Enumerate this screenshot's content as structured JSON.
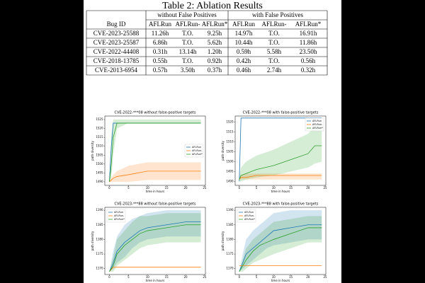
{
  "table": {
    "title": "Table 2: Ablation Results",
    "group_headers": [
      "without False Positives",
      "with False Positives"
    ],
    "columns": [
      "Bug ID",
      "AFLRun",
      "AFLRun-",
      "AFLRun*",
      "AFLRun",
      "AFLRun-",
      "AFLRun*"
    ],
    "rows": [
      [
        "CVE-2023-25588",
        "11.26h",
        "T.O.",
        "9.25h",
        "14.97h",
        "T.O.",
        "16.91h"
      ],
      [
        "CVE-2023-25587",
        "6.86h",
        "T.O.",
        "5.62h",
        "10.44h",
        "T.O.",
        "11.86h"
      ],
      [
        "CVE-2022-44408",
        "0.31h",
        "13.14h",
        "1.20h",
        "0.59h",
        "5.58h",
        "23.50h"
      ],
      [
        "CVE-2018-13785",
        "0.55h",
        "T.O.",
        "0.92h",
        "0.42h",
        "T.O.",
        "0.56h"
      ],
      [
        "CVE-2013-6954",
        "0.57h",
        "3.50h",
        "0.37h",
        "0.46h",
        "2.74h",
        "0.32h"
      ]
    ]
  },
  "chart_data": [
    {
      "type": "line",
      "title": "CVE-2022-***08 without false-positive targets",
      "x_label": "time in hours",
      "y_label": "path diversity",
      "xlim": [
        -1.2,
        25.2
      ],
      "xticks": [
        0,
        5,
        10,
        15,
        20,
        25
      ],
      "ylim": [
        1488,
        1527
      ],
      "yticks": [
        1490,
        1495,
        1500,
        1505,
        1510,
        1515,
        1520,
        1525
      ],
      "legend": "center right",
      "x": [
        0,
        0.5,
        1,
        2,
        5,
        10,
        15,
        20,
        24
      ],
      "series": [
        {
          "name": "AFLRun",
          "color": "#1f77b4",
          "values": [
            1490,
            1510,
            1523,
            1523,
            1523,
            1523,
            1523,
            1523,
            1523
          ]
        },
        {
          "name": "AFLRun-",
          "color": "#ff7f0e",
          "values": [
            1490,
            1491,
            1492,
            1493,
            1494,
            1496,
            1496,
            1496,
            1496
          ],
          "lower": [
            1490,
            1490,
            1490,
            1490,
            1490,
            1491,
            1491,
            1491,
            1491
          ],
          "upper": [
            1490,
            1492,
            1494,
            1496,
            1499,
            1501,
            1501,
            1501,
            1501
          ]
        },
        {
          "name": "AFLRun*",
          "color": "#2ca02c",
          "values": [
            1490,
            1500,
            1515,
            1523,
            1523,
            1523,
            1523,
            1523,
            1523
          ],
          "lower": [
            1490,
            1492,
            1505,
            1520,
            1523,
            1523,
            1523,
            1523,
            1523
          ],
          "upper": [
            1490,
            1515,
            1525,
            1525,
            1525,
            1525,
            1525,
            1525,
            1525
          ]
        }
      ]
    },
    {
      "type": "line",
      "title": "CVE-2022-***08 with false-positive targets",
      "x_label": "time in hours",
      "y_label": "path diversity",
      "xlim": [
        -1.2,
        25.2
      ],
      "xticks": [
        0,
        5,
        10,
        15,
        20,
        25
      ],
      "ylim": [
        1488,
        1523
      ],
      "yticks": [
        1490,
        1495,
        1500,
        1505,
        1510,
        1515,
        1520
      ],
      "legend": "upper right",
      "x": [
        0,
        0.5,
        2,
        5,
        10,
        15,
        20,
        22,
        24
      ],
      "series": [
        {
          "name": "AFLRun",
          "color": "#1f77b4",
          "values": [
            1490,
            1522,
            1522,
            1522,
            1522,
            1522,
            1522,
            1522,
            1522
          ]
        },
        {
          "name": "AFLRun-",
          "color": "#ff7f0e",
          "values": [
            1491,
            1492,
            1492,
            1493,
            1493,
            1493,
            1493,
            1493,
            1493
          ],
          "lower": [
            1491,
            1491,
            1491,
            1491,
            1491,
            1491,
            1491,
            1491,
            1491
          ],
          "upper": [
            1491,
            1493,
            1494,
            1494,
            1494,
            1494,
            1494,
            1494,
            1494
          ]
        },
        {
          "name": "AFLRun*",
          "color": "#2ca02c",
          "values": [
            1491,
            1493,
            1494,
            1496,
            1498,
            1501,
            1504,
            1508,
            1508
          ],
          "lower": [
            1490,
            1490,
            1491,
            1492,
            1493,
            1495,
            1497,
            1499,
            1500
          ],
          "upper": [
            1492,
            1497,
            1500,
            1503,
            1506,
            1510,
            1514,
            1518,
            1520
          ]
        }
      ]
    },
    {
      "type": "line",
      "title": "CVE-2023-***88 without false-positive targets",
      "x_label": "time in hours",
      "y_label": "path diversity",
      "xlim": [
        -1.2,
        25.2
      ],
      "xticks": [
        0,
        5,
        10,
        15,
        20,
        25
      ],
      "ylim": [
        1168,
        1191
      ],
      "yticks": [
        1170,
        1175,
        1180,
        1185,
        1190
      ],
      "legend": "upper left",
      "x": [
        0,
        1,
        2,
        4,
        6,
        8,
        10,
        15,
        20,
        24
      ],
      "series": [
        {
          "name": "AFLRun",
          "color": "#1f77b4",
          "values": [
            1169,
            1172,
            1176,
            1179,
            1181,
            1183,
            1184,
            1185,
            1186,
            1186
          ],
          "lower": [
            1169,
            1170,
            1172,
            1174,
            1177,
            1179,
            1180,
            1181,
            1181,
            1181
          ],
          "upper": [
            1169,
            1176,
            1181,
            1185,
            1187,
            1188,
            1189,
            1190,
            1190,
            1190
          ]
        },
        {
          "name": "AFLRun-",
          "color": "#ff7f0e",
          "values": [
            1169,
            1170.5,
            1170.5,
            1170.5,
            1170.5,
            1170.5,
            1170.5,
            1170.5,
            1170.5,
            1170.5
          ]
        },
        {
          "name": "AFLRun*",
          "color": "#2ca02c",
          "values": [
            1169,
            1171,
            1175,
            1178,
            1180,
            1182,
            1183,
            1184,
            1185,
            1185
          ],
          "lower": [
            1169,
            1169,
            1171,
            1173,
            1175,
            1177,
            1178,
            1179,
            1179,
            1179
          ],
          "upper": [
            1169,
            1174,
            1180,
            1183,
            1186,
            1188,
            1188,
            1189,
            1189,
            1189
          ]
        }
      ]
    },
    {
      "type": "line",
      "title": "CVE-2023-***88 with false-positive targets",
      "x_label": "time in hours",
      "y_label": "path diversity",
      "xlim": [
        -1.2,
        25.2
      ],
      "xticks": [
        0,
        5,
        10,
        15,
        20,
        25
      ],
      "ylim": [
        1168,
        1191
      ],
      "yticks": [
        1170,
        1175,
        1180,
        1185,
        1190
      ],
      "legend": "upper left",
      "x": [
        0,
        1,
        2,
        4,
        6,
        8,
        10,
        15,
        20,
        24
      ],
      "series": [
        {
          "name": "AFLRun",
          "color": "#1f77b4",
          "values": [
            1169,
            1172,
            1175,
            1177,
            1179,
            1181,
            1183,
            1184,
            1185,
            1185
          ],
          "lower": [
            1169,
            1170,
            1171,
            1173,
            1175,
            1177,
            1178,
            1179,
            1180,
            1180
          ],
          "upper": [
            1169,
            1175,
            1180,
            1183,
            1185,
            1187,
            1189,
            1190,
            1190,
            1190
          ]
        },
        {
          "name": "AFLRun-",
          "color": "#ff7f0e",
          "values": [
            1171,
            1171,
            1171,
            1171,
            1171,
            1171,
            1171,
            1171,
            1171,
            1171
          ]
        },
        {
          "name": "AFLRun*",
          "color": "#2ca02c",
          "values": [
            1169,
            1171,
            1173,
            1176,
            1178,
            1179,
            1180,
            1182,
            1184,
            1184
          ],
          "lower": [
            1169,
            1169,
            1170,
            1172,
            1173,
            1174,
            1175,
            1177,
            1179,
            1179
          ],
          "upper": [
            1169,
            1173,
            1177,
            1180,
            1182,
            1184,
            1186,
            1187,
            1188,
            1188
          ]
        }
      ]
    }
  ]
}
